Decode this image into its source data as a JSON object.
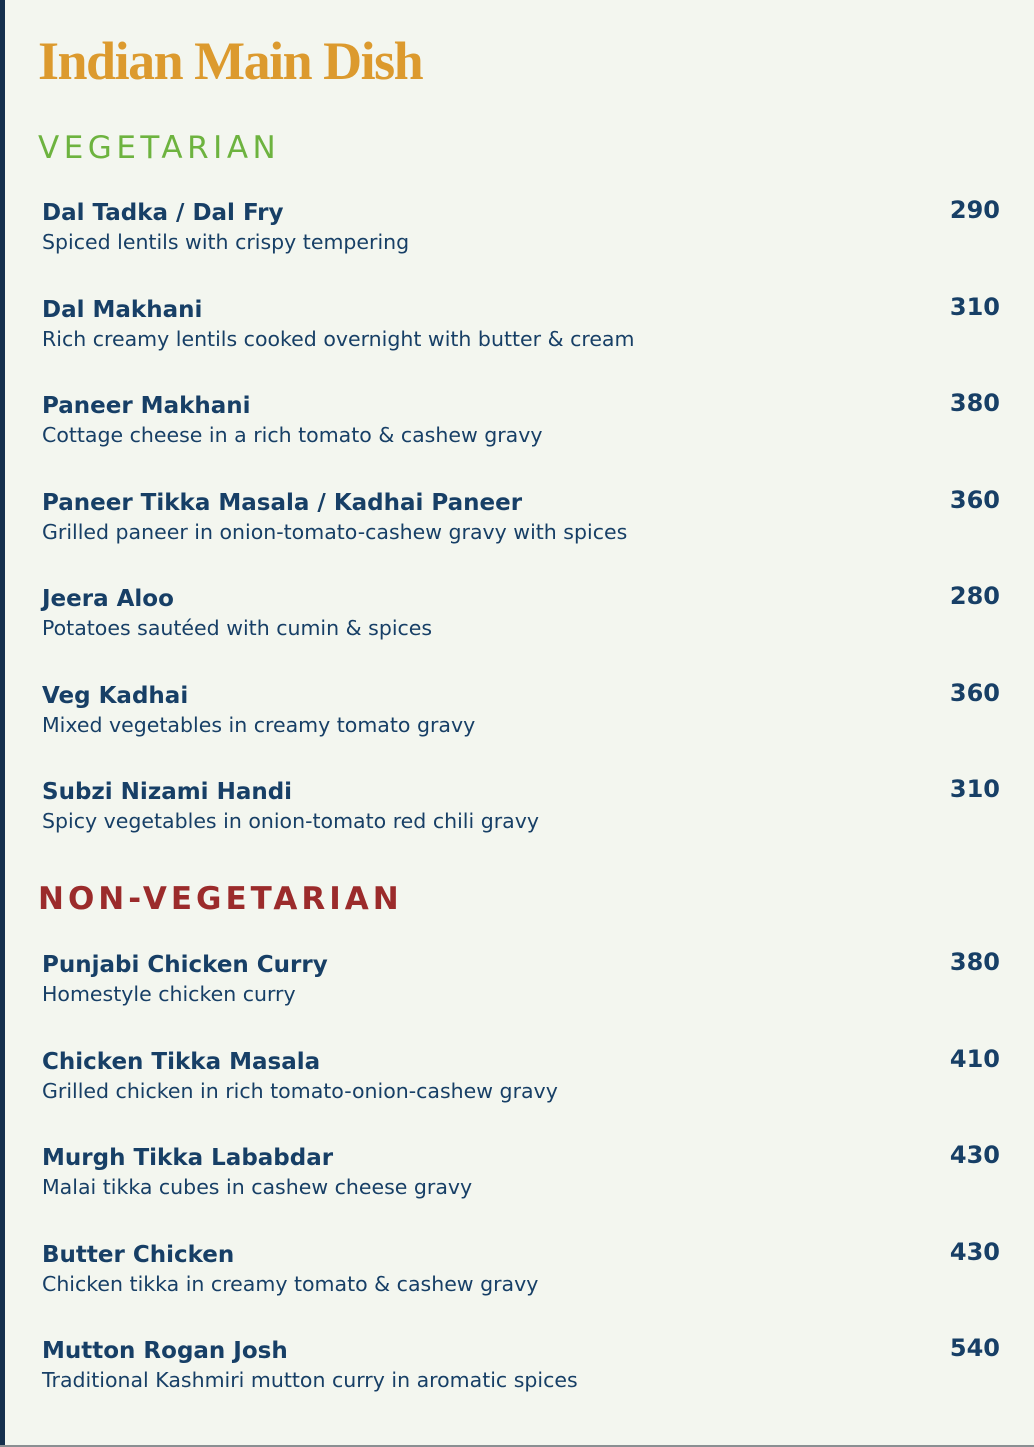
{
  "title": "Indian Main Dish",
  "colors": {
    "title": "#dc9a2e",
    "vegetarian": "#6db33f",
    "non_vegetarian": "#9b2b2b",
    "text": "#173f66",
    "background": "#f3f6ef"
  },
  "sections": [
    {
      "heading": "VEGETARIAN",
      "items": [
        {
          "name": "Dal Tadka / Dal Fry",
          "description": "Spiced lentils with crispy tempering",
          "price": "290"
        },
        {
          "name": "Dal Makhani",
          "description": "Rich creamy lentils cooked overnight with butter & cream",
          "price": "310"
        },
        {
          "name": "Paneer Makhani",
          "description": "Cottage cheese in a rich tomato & cashew gravy",
          "price": "380"
        },
        {
          "name": "Paneer Tikka Masala / Kadhai Paneer",
          "description": "Grilled paneer in onion-tomato-cashew gravy with spices",
          "price": "360"
        },
        {
          "name": "Jeera Aloo",
          "description": "Potatoes sautéed with cumin & spices",
          "price": "280"
        },
        {
          "name": "Veg Kadhai",
          "description": "Mixed vegetables in creamy tomato gravy",
          "price": "360"
        },
        {
          "name": "Subzi Nizami Handi",
          "description": "Spicy vegetables in onion-tomato red chili gravy",
          "price": "310"
        }
      ]
    },
    {
      "heading": "NON-VEGETARIAN",
      "items": [
        {
          "name": "Punjabi Chicken Curry",
          "description": "Homestyle chicken curry",
          "price": "380"
        },
        {
          "name": "Chicken Tikka Masala",
          "description": "Grilled chicken in rich tomato-onion-cashew gravy",
          "price": "410"
        },
        {
          "name": "Murgh Tikka Lababdar",
          "description": "Malai tikka cubes in cashew cheese gravy",
          "price": "430"
        },
        {
          "name": "Butter Chicken",
          "description": "Chicken tikka in creamy tomato & cashew gravy",
          "price": "430"
        },
        {
          "name": "Mutton Rogan Josh",
          "description": "Traditional Kashmiri mutton curry in aromatic spices",
          "price": "540"
        }
      ]
    }
  ]
}
